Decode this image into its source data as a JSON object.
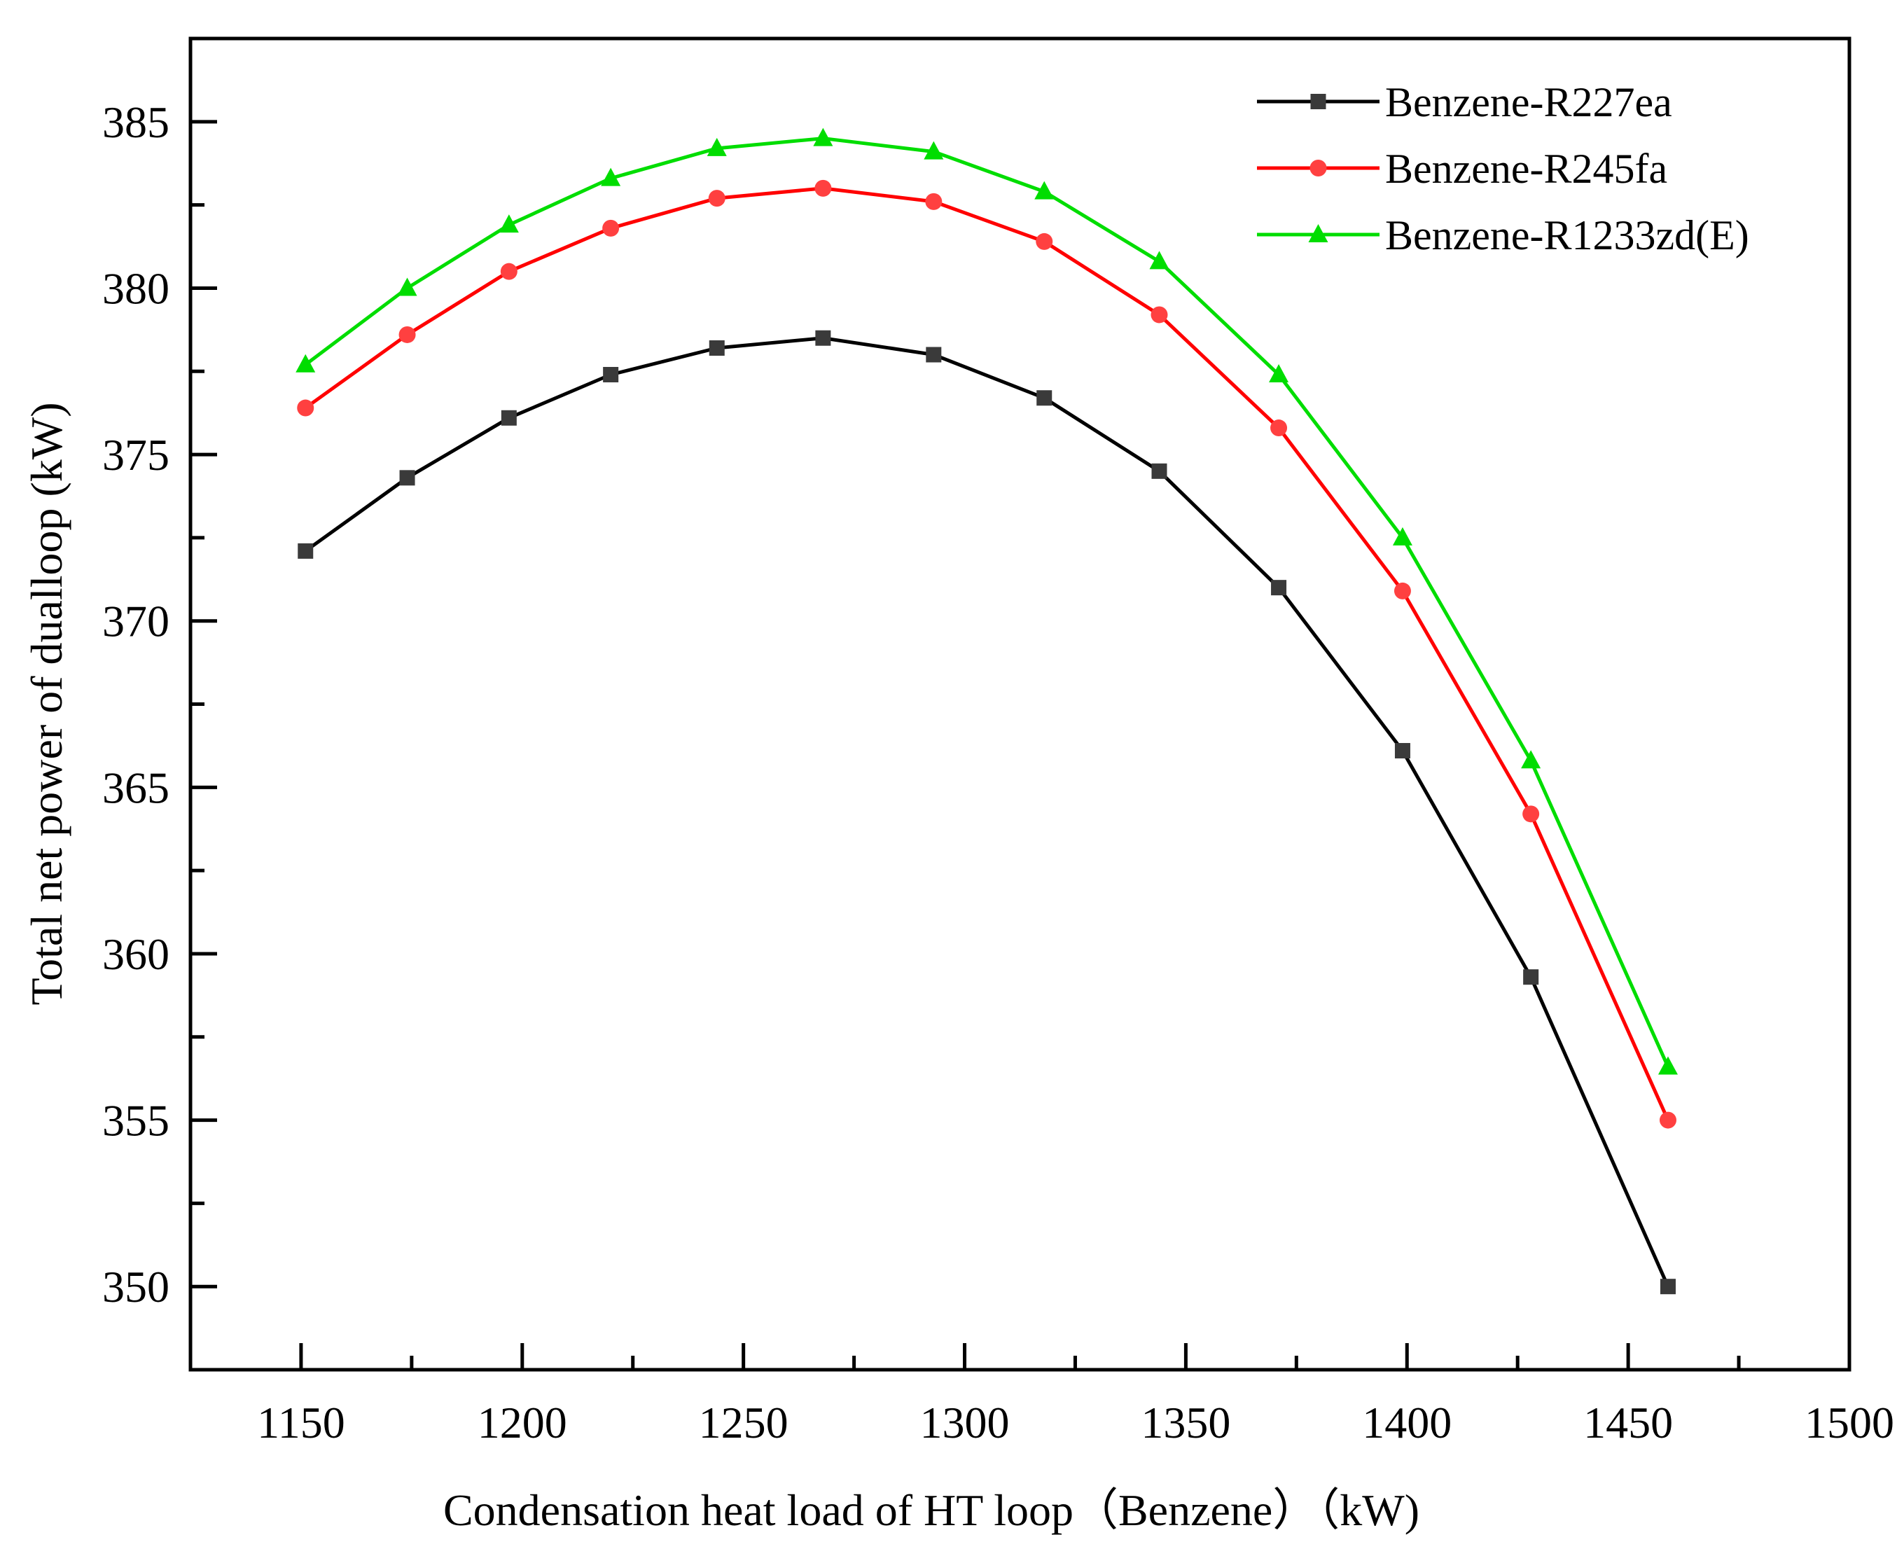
{
  "chart_data": {
    "type": "line",
    "title": "",
    "xlabel": "Condensation heat load of HT loop（Benzene）（kW)",
    "ylabel": "Total net power of dualloop (kW)",
    "xlim": [
      1125,
      1500
    ],
    "ylim": [
      347.5,
      387.5
    ],
    "xticks": [
      1150,
      1200,
      1250,
      1300,
      1350,
      1400,
      1450,
      1500
    ],
    "yticks": [
      350,
      355,
      360,
      365,
      370,
      375,
      380,
      385
    ],
    "grid": false,
    "legend_position": "top-right",
    "x": [
      1151,
      1174,
      1197,
      1220,
      1244,
      1268,
      1293,
      1318,
      1344,
      1371,
      1399,
      1428,
      1459
    ],
    "series": [
      {
        "name": "Benzene-R227ea",
        "color": "#000000",
        "marker_color": "#3a3a3a",
        "marker": "square",
        "values": [
          372.1,
          374.3,
          376.1,
          377.4,
          378.2,
          378.5,
          378.0,
          376.7,
          374.5,
          371.0,
          366.1,
          359.3,
          350.0
        ]
      },
      {
        "name": "Benzene-R245fa",
        "color": "#ff0000",
        "marker_color": "#ff4040",
        "marker": "circle",
        "values": [
          376.4,
          378.6,
          380.5,
          381.8,
          382.7,
          383.0,
          382.6,
          381.4,
          379.2,
          375.8,
          370.9,
          364.2,
          355.0
        ]
      },
      {
        "name": "Benzene-R1233zd(E)",
        "color": "#00dd00",
        "marker_color": "#00dd00",
        "marker": "triangle",
        "values": [
          377.7,
          380.0,
          381.9,
          383.3,
          384.2,
          384.5,
          384.1,
          382.9,
          380.8,
          377.4,
          372.5,
          365.8,
          356.6
        ]
      }
    ]
  }
}
